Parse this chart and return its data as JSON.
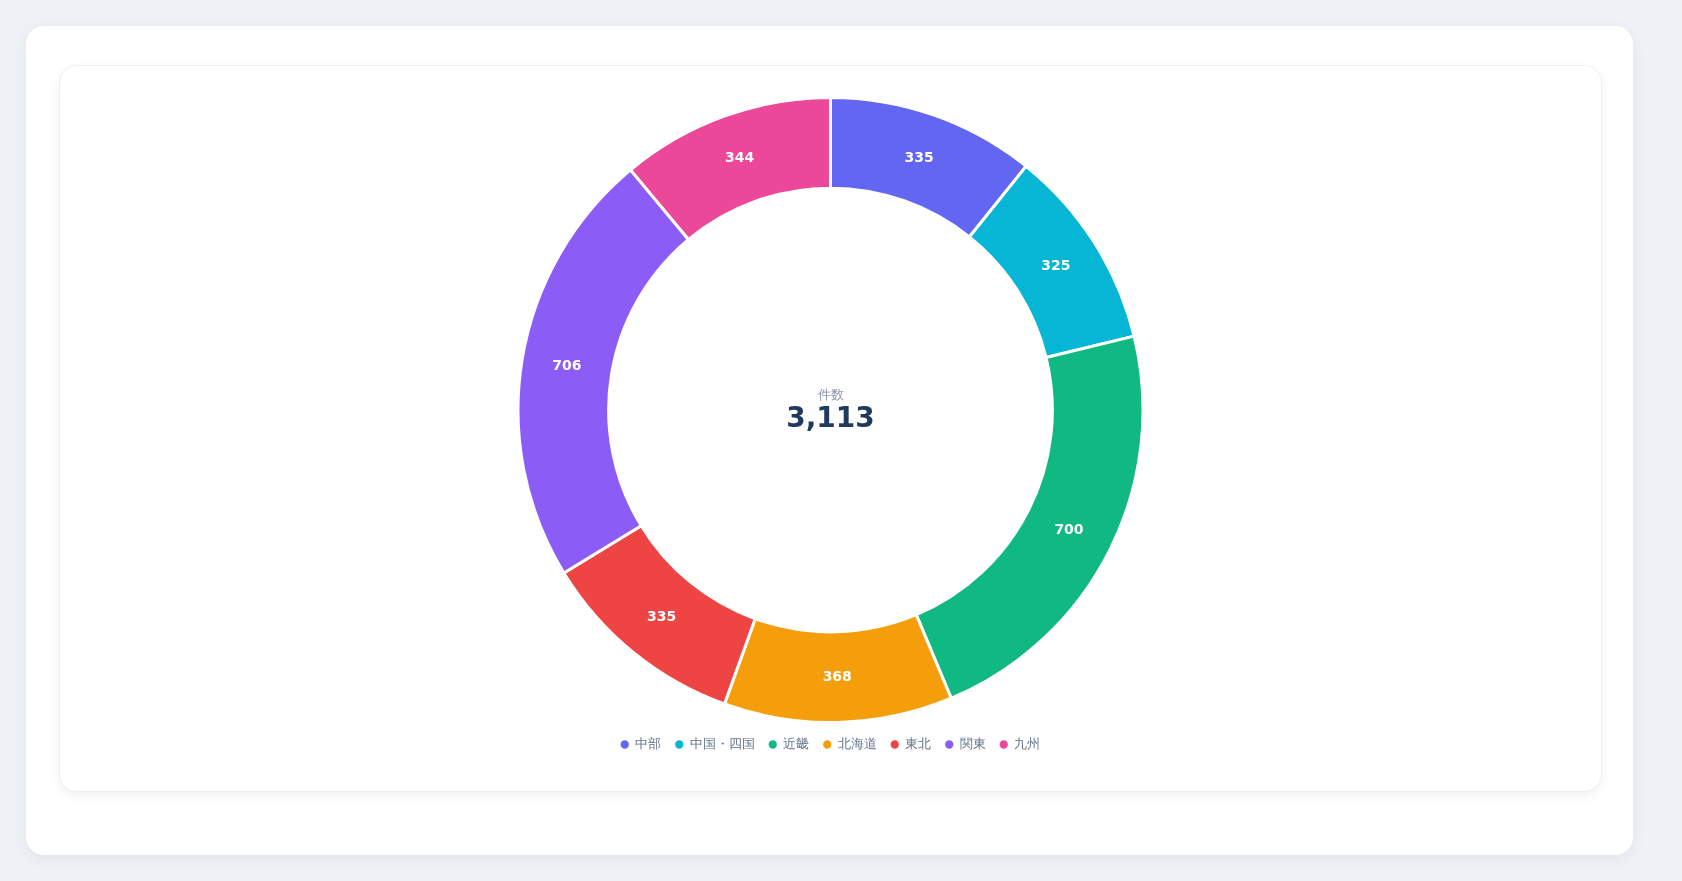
{
  "chart_data": {
    "type": "donut",
    "categories": [
      "中部",
      "中国・四国",
      "近畿",
      "北海道",
      "東北",
      "関東",
      "九州"
    ],
    "values": [
      335,
      325,
      700,
      368,
      335,
      706,
      344
    ],
    "colors": [
      "#6366f1",
      "#06b6d4",
      "#10b981",
      "#f59e0b",
      "#ef4444",
      "#8b5cf6",
      "#ec4899"
    ],
    "data_labels": true,
    "legend": "bottom",
    "annotations": [
      "件数",
      "3,113"
    ]
  }
}
